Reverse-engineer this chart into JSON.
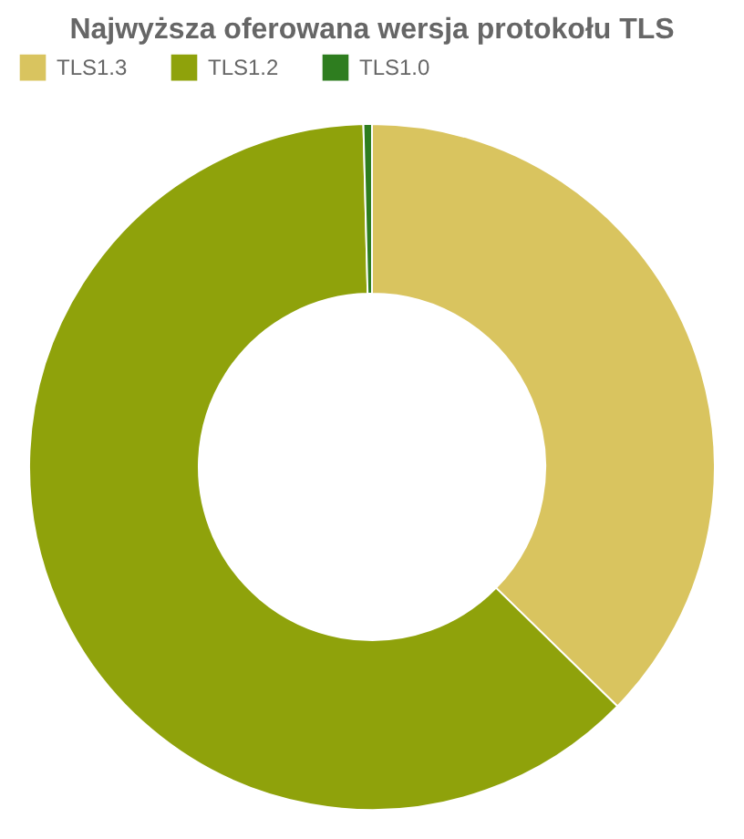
{
  "chart_data": {
    "type": "donut",
    "title": "Najwyższa oferowana wersja protokołu TLS",
    "categories": [
      "TLS1.3",
      "TLS1.2",
      "TLS1.0"
    ],
    "values": [
      37.3,
      62.3,
      0.4
    ],
    "colors": [
      "#d9c45f",
      "#8fa20b",
      "#2e7d1f"
    ],
    "legend": "top"
  }
}
